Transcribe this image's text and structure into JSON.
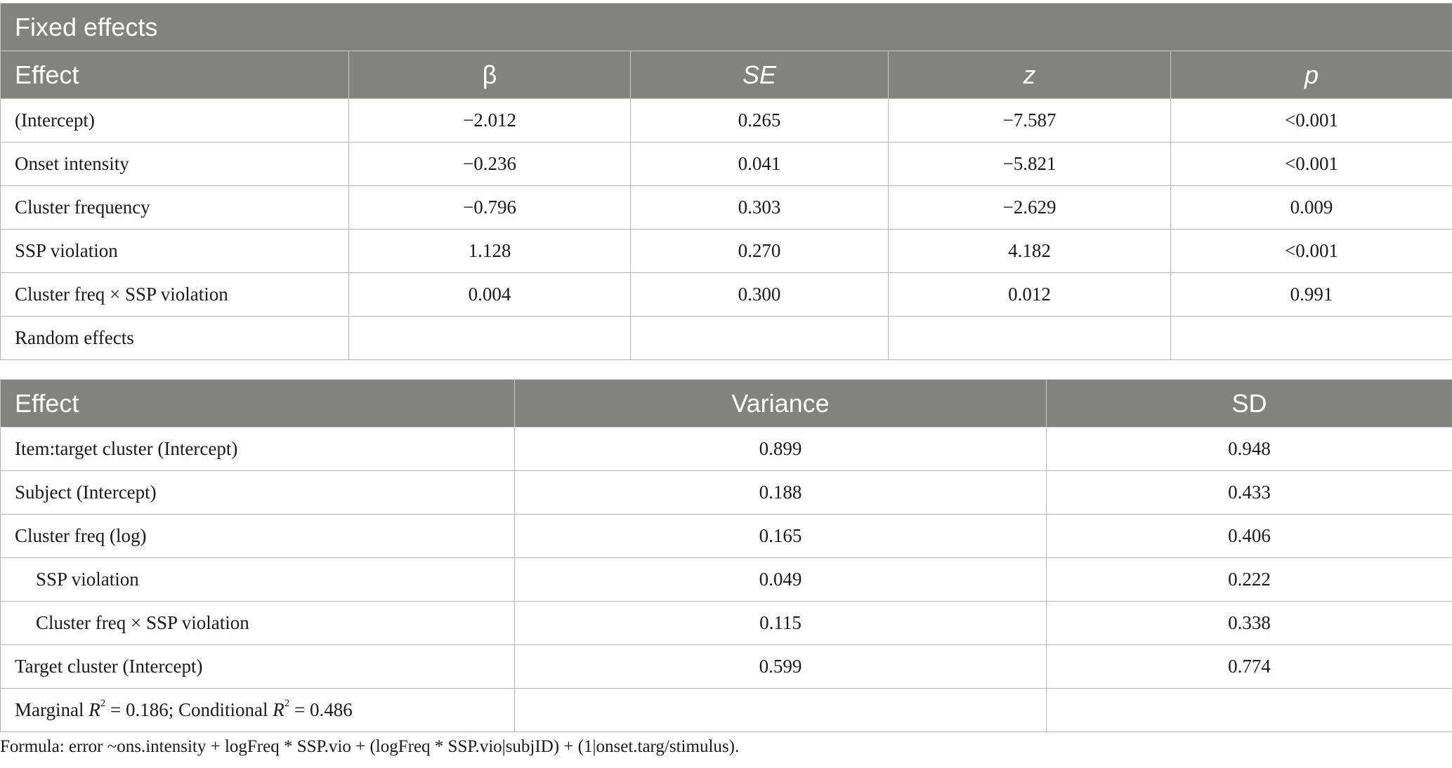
{
  "fixed": {
    "title": "Fixed effects",
    "headers": [
      "Effect",
      "β",
      "SE",
      "z",
      "p"
    ],
    "rows": [
      {
        "effect": "(Intercept)",
        "beta": "−2.012",
        "se": "0.265",
        "z": "−7.587",
        "p": "<0.001"
      },
      {
        "effect": "Onset intensity",
        "beta": "−0.236",
        "se": "0.041",
        "z": "−5.821",
        "p": "<0.001"
      },
      {
        "effect": "Cluster frequency",
        "beta": "−0.796",
        "se": "0.303",
        "z": "−2.629",
        "p": "0.009"
      },
      {
        "effect": "SSP violation",
        "beta": "1.128",
        "se": "0.270",
        "z": "4.182",
        "p": "<0.001"
      },
      {
        "effect": "Cluster freq × SSP violation",
        "beta": "0.004",
        "se": "0.300",
        "z": "0.012",
        "p": "0.991"
      },
      {
        "effect": "Random effects",
        "beta": "",
        "se": "",
        "z": "",
        "p": ""
      }
    ]
  },
  "random": {
    "headers": [
      "Effect",
      "Variance",
      "SD"
    ],
    "rows": [
      {
        "effect": "Item:target cluster (Intercept)",
        "variance": "0.899",
        "sd": "0.948"
      },
      {
        "effect": "Subject (Intercept)",
        "variance": "0.188",
        "sd": "0.433"
      },
      {
        "effect": "Cluster freq (log)",
        "variance": "0.165",
        "sd": "0.406"
      },
      {
        "effect": "SSP violation",
        "variance": "0.049",
        "sd": "0.222"
      },
      {
        "effect": "Cluster freq × SSP violation",
        "variance": "0.115",
        "sd": "0.338"
      },
      {
        "effect": "Target cluster (Intercept)",
        "variance": "0.599",
        "sd": "0.774"
      }
    ],
    "summary": {
      "marginal_label": "Marginal",
      "r_symbol": "R",
      "r_exponent": "2",
      "marginal_value": " = 0.186; Conditional ",
      "conditional_value": " = 0.486"
    }
  },
  "footnote": "Formula: error ~ons.intensity + logFreq * SSP.vio + (logFreq * SSP.vio|subjID) + (1|onset.targ/stimulus)."
}
